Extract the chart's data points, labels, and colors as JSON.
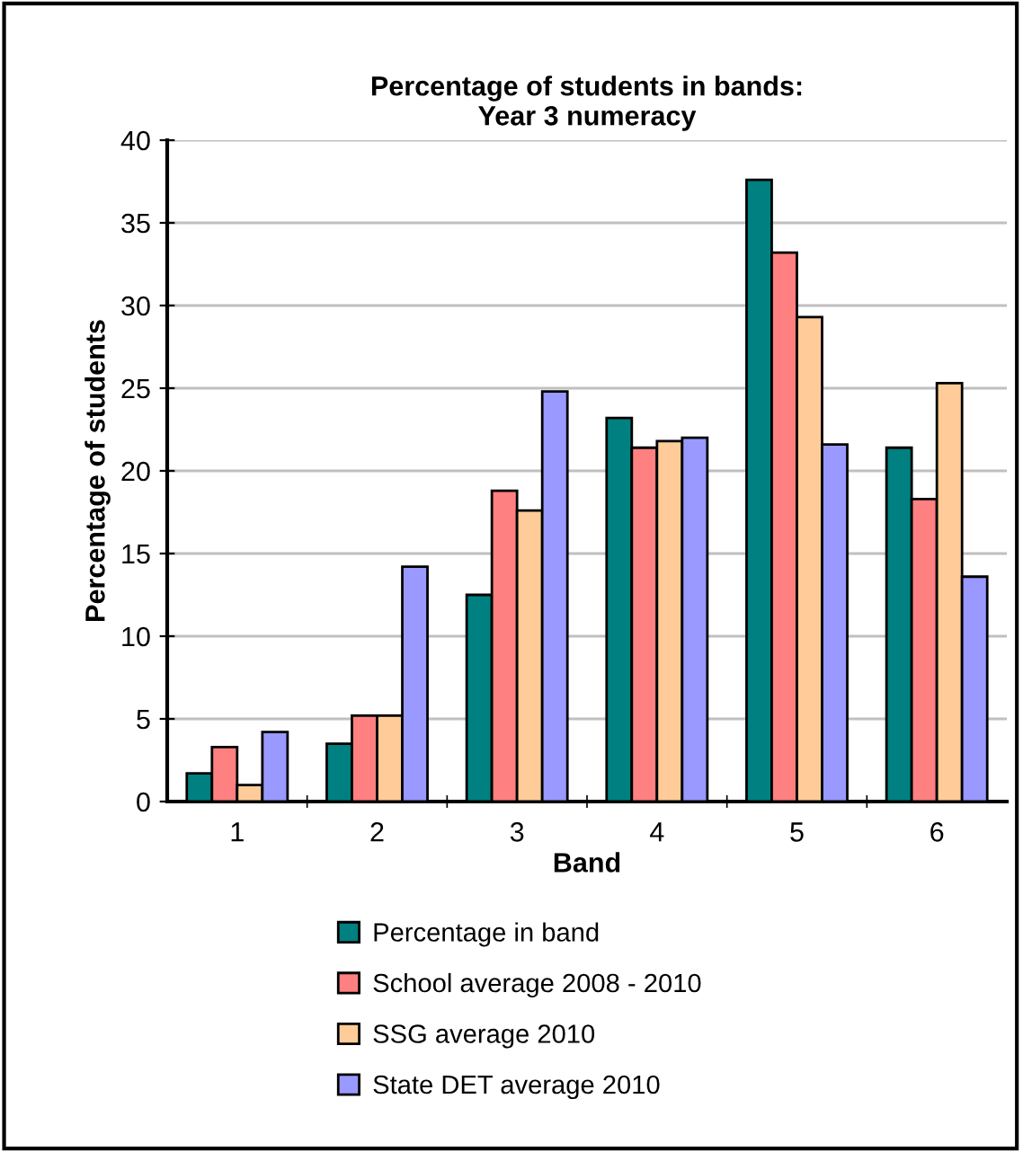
{
  "chart_data": {
    "type": "bar",
    "title": "Percentage of students in bands:\nYear 3 numeracy",
    "xlabel": "Band",
    "ylabel": "Percentage of students",
    "categories": [
      "1",
      "2",
      "3",
      "4",
      "5",
      "6"
    ],
    "series": [
      {
        "name": "Percentage in band",
        "color": "#008080",
        "values": [
          1.7,
          3.5,
          12.5,
          23.2,
          37.6,
          21.4
        ]
      },
      {
        "name": "School average 2008 - 2010",
        "color": "#ff8080",
        "values": [
          3.3,
          5.2,
          18.8,
          21.4,
          33.2,
          18.3
        ]
      },
      {
        "name": "SSG average 2010",
        "color": "#ffcc99",
        "values": [
          1.0,
          5.2,
          17.6,
          21.8,
          29.3,
          25.3
        ]
      },
      {
        "name": "State DET average 2010",
        "color": "#9999ff",
        "values": [
          4.2,
          14.2,
          24.8,
          22.0,
          21.6,
          13.6
        ]
      }
    ],
    "ylim": [
      0,
      40
    ],
    "yticks": [
      0,
      5,
      10,
      15,
      20,
      25,
      30,
      35,
      40
    ],
    "grid": "y",
    "legend": "bottom"
  }
}
